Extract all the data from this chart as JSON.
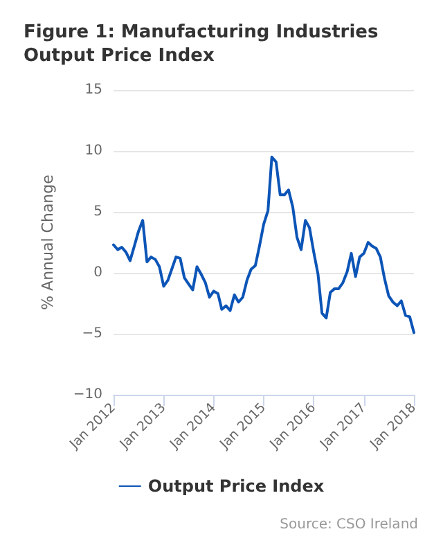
{
  "chart_data": {
    "type": "line",
    "title": "Figure 1: Manufacturing Industries Output Price Index",
    "ylabel": "% Annual Change",
    "x": [
      "2012-01",
      "2012-02",
      "2012-03",
      "2012-04",
      "2012-05",
      "2012-06",
      "2012-07",
      "2012-08",
      "2012-09",
      "2012-10",
      "2012-11",
      "2012-12",
      "2013-01",
      "2013-02",
      "2013-03",
      "2013-04",
      "2013-05",
      "2013-06",
      "2013-07",
      "2013-08",
      "2013-09",
      "2013-10",
      "2013-11",
      "2013-12",
      "2014-01",
      "2014-02",
      "2014-03",
      "2014-04",
      "2014-05",
      "2014-06",
      "2014-07",
      "2014-08",
      "2014-09",
      "2014-10",
      "2014-11",
      "2014-12",
      "2015-01",
      "2015-02",
      "2015-03",
      "2015-04",
      "2015-05",
      "2015-06",
      "2015-07",
      "2015-08",
      "2015-09",
      "2015-10",
      "2015-11",
      "2015-12",
      "2016-01",
      "2016-02",
      "2016-03",
      "2016-04",
      "2016-05",
      "2016-06",
      "2016-07",
      "2016-08",
      "2016-09",
      "2016-10",
      "2016-11",
      "2016-12",
      "2017-01",
      "2017-02",
      "2017-03",
      "2017-04",
      "2017-05",
      "2017-06",
      "2017-07",
      "2017-08",
      "2017-09",
      "2017-10",
      "2017-11",
      "2017-12",
      "2018-01"
    ],
    "series": [
      {
        "name": "Output Price Index",
        "color": "#0c55b7",
        "values": [
          2.3,
          1.9,
          2.1,
          1.7,
          1.0,
          2.2,
          3.4,
          4.3,
          0.9,
          1.3,
          1.1,
          0.5,
          -1.1,
          -0.6,
          0.3,
          1.3,
          1.2,
          -0.4,
          -0.9,
          -1.4,
          0.5,
          -0.1,
          -0.8,
          -2.0,
          -1.5,
          -1.7,
          -3.0,
          -2.7,
          -3.1,
          -1.8,
          -2.4,
          -2.0,
          -0.6,
          0.3,
          0.6,
          2.2,
          4.0,
          5.1,
          9.5,
          9.1,
          6.4,
          6.4,
          6.8,
          5.4,
          2.9,
          1.9,
          4.3,
          3.7,
          1.7,
          -0.1,
          -3.3,
          -3.7,
          -1.6,
          -1.3,
          -1.3,
          -0.8,
          0.1,
          1.6,
          -0.3,
          1.3,
          1.6,
          2.5,
          2.2,
          2.0,
          1.3,
          -0.5,
          -1.9,
          -2.4,
          -2.7,
          -2.3,
          -3.5,
          -3.6,
          -4.9
        ]
      }
    ],
    "ylim": [
      -10,
      15
    ],
    "yticks": [
      -10,
      -5,
      0,
      5,
      10,
      15
    ],
    "xlim": [
      "2012-01",
      "2018-01"
    ],
    "xticks": [
      {
        "value": "2012-01",
        "label": "Jan 2012"
      },
      {
        "value": "2013-01",
        "label": "Jan 2013"
      },
      {
        "value": "2014-01",
        "label": "Jan 2014"
      },
      {
        "value": "2015-01",
        "label": "Jan 2015"
      },
      {
        "value": "2016-01",
        "label": "Jan 2016"
      },
      {
        "value": "2017-01",
        "label": "Jan 2017"
      },
      {
        "value": "2018-01",
        "label": "Jan 2018"
      }
    ],
    "grid": "y",
    "legend": "bottom",
    "marker": "none",
    "line_style": "solid",
    "annotations": [
      "Source: CSO Ireland"
    ]
  }
}
